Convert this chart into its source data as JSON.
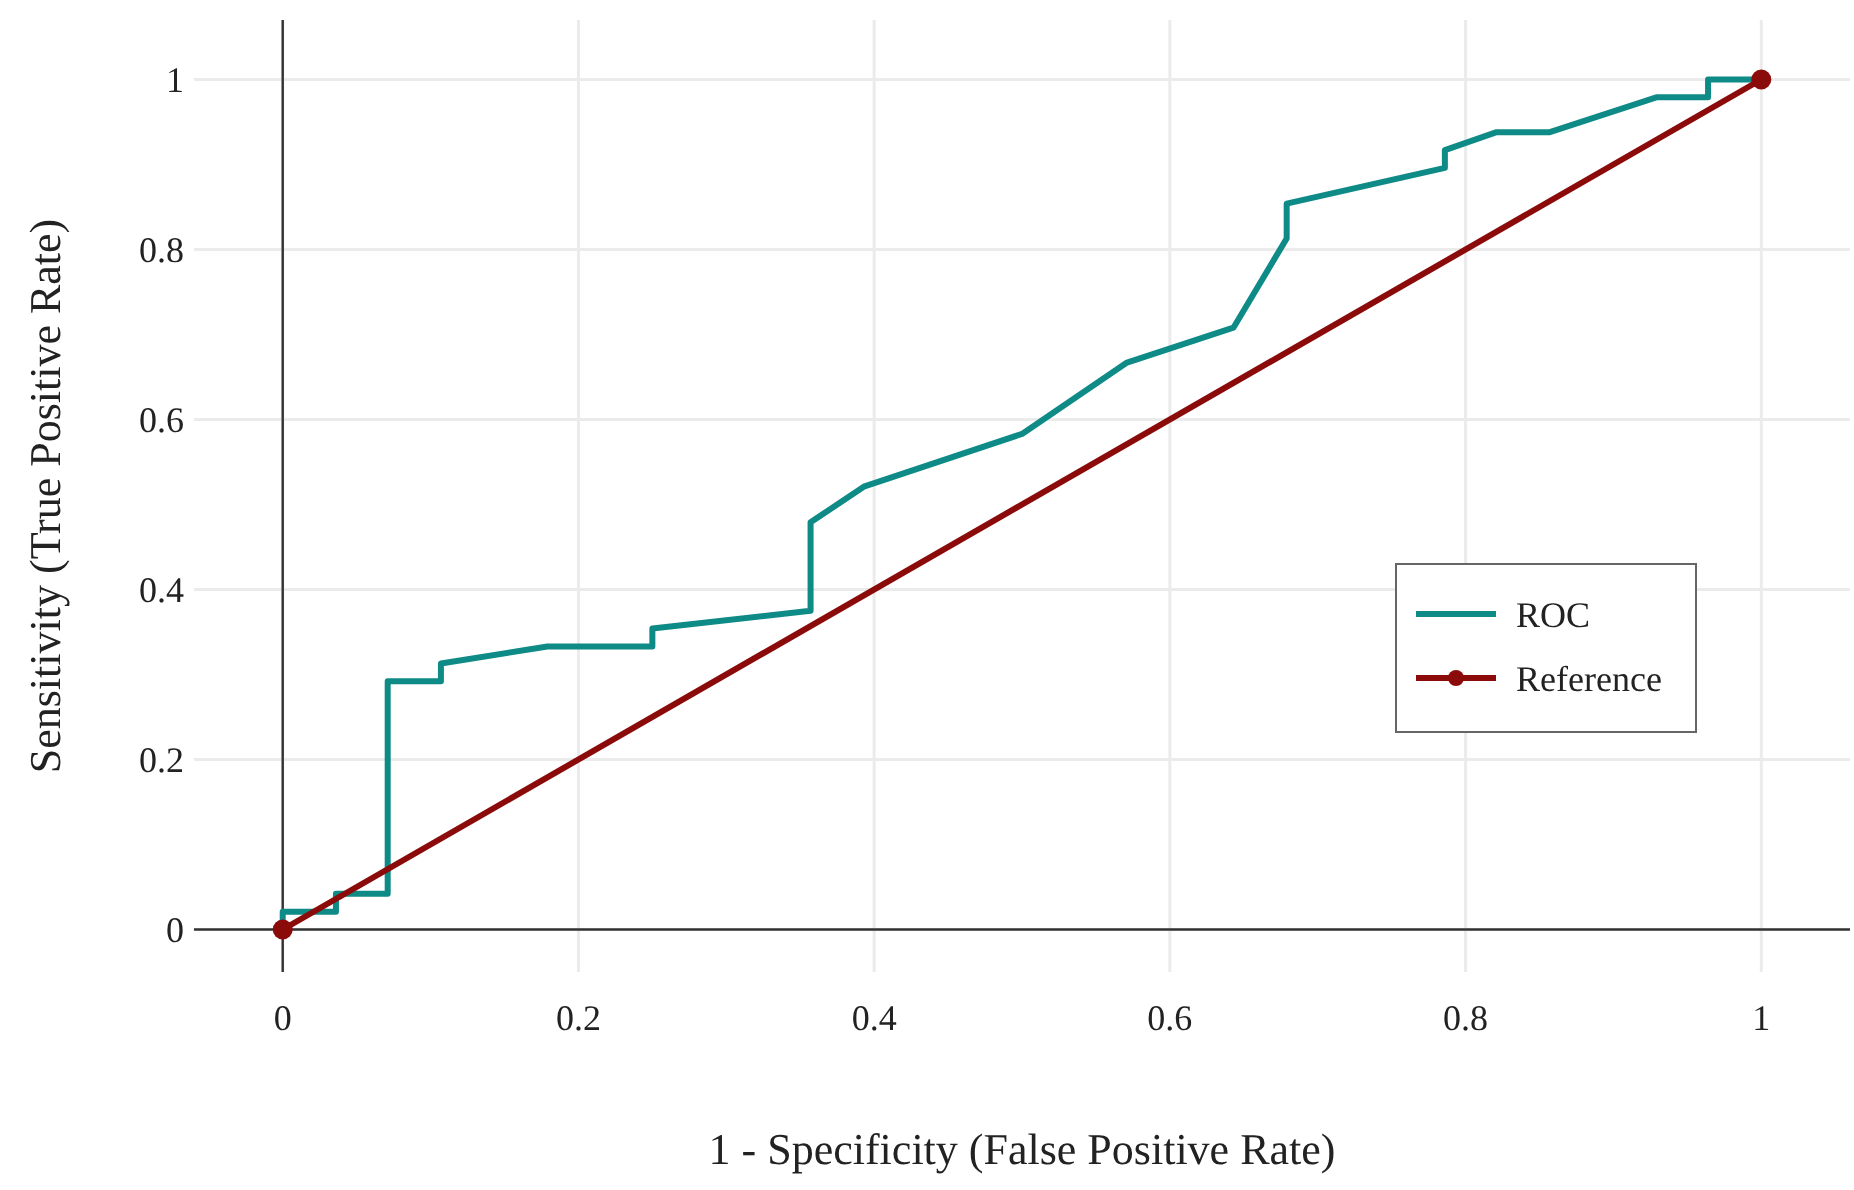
{
  "chart_data": {
    "type": "line",
    "xlabel": "1 - Specificity (False Positive Rate)",
    "ylabel": "Sensitivity (True Positive Rate)",
    "xlim": [
      -0.06,
      1.06
    ],
    "ylim": [
      -0.05,
      1.07
    ],
    "xticks": [
      0,
      0.2,
      0.4,
      0.6,
      0.8,
      1
    ],
    "yticks": [
      0,
      0.2,
      0.4,
      0.6,
      0.8,
      1
    ],
    "grid": true,
    "legend": "right",
    "series": [
      {
        "name": "ROC",
        "color": "#0e8a87",
        "marker": "none",
        "x": [
          0,
          0,
          0.036,
          0.036,
          0.071,
          0.071,
          0.107,
          0.107,
          0.179,
          0.25,
          0.25,
          0.357,
          0.357,
          0.393,
          0.5,
          0.571,
          0.643,
          0.679,
          0.679,
          0.786,
          0.786,
          0.821,
          0.857,
          0.929,
          0.964,
          0.964,
          1
        ],
        "values": [
          0,
          0.021,
          0.021,
          0.042,
          0.042,
          0.292,
          0.292,
          0.313,
          0.333,
          0.333,
          0.354,
          0.375,
          0.479,
          0.521,
          0.583,
          0.667,
          0.708,
          0.813,
          0.854,
          0.896,
          0.917,
          0.938,
          0.938,
          0.979,
          0.979,
          1,
          1
        ]
      },
      {
        "name": "Reference",
        "color": "#8b0a0a",
        "marker": "circle",
        "x": [
          0,
          1
        ],
        "values": [
          0,
          1
        ]
      }
    ]
  }
}
